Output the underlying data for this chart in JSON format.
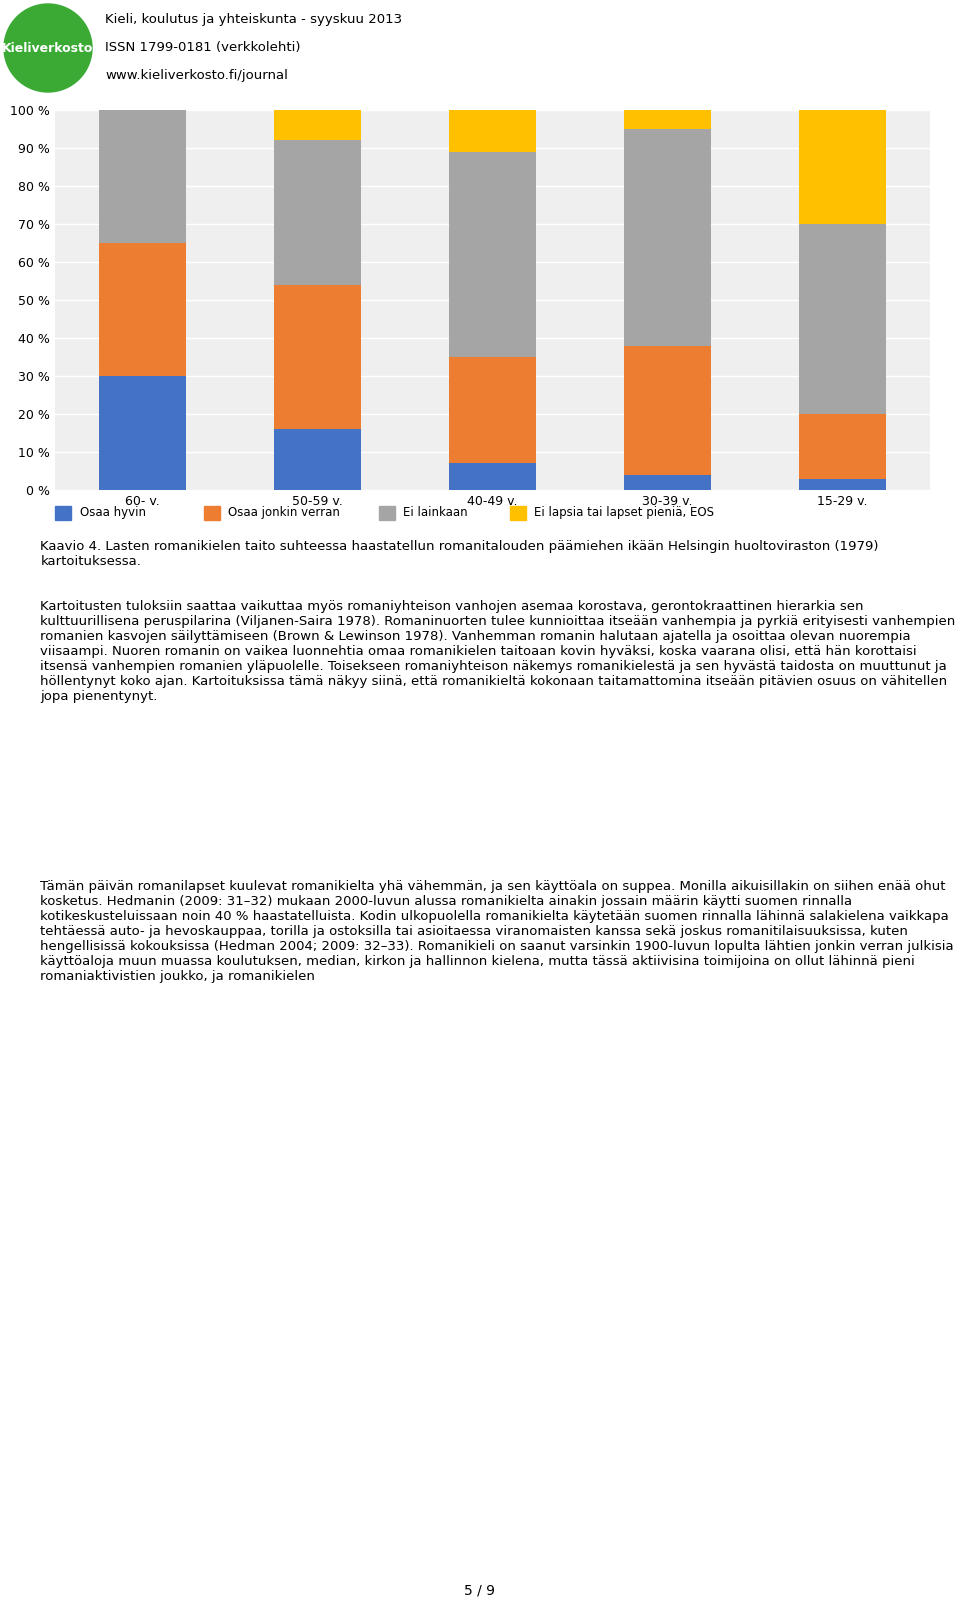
{
  "categories": [
    "60- v.",
    "50-59 v.",
    "40-49 v.",
    "30-39 v.",
    "15-29 v."
  ],
  "series": {
    "Osaa hyvin": [
      30,
      16,
      7,
      4,
      3
    ],
    "Osaa jonkin verran": [
      35,
      38,
      28,
      34,
      17
    ],
    "Ei lainkaan": [
      35,
      38,
      54,
      57,
      50
    ],
    "Ei lapsia tai lapset pieniä, EOS": [
      0,
      8,
      11,
      5,
      30
    ]
  },
  "colors": {
    "Osaa hyvin": "#4472C4",
    "Osaa jonkin verran": "#ED7D31",
    "Ei lainkaan": "#A5A5A5",
    "Ei lapsia tai lapset pieniä, EOS": "#FFC000"
  },
  "yticks": [
    0,
    10,
    20,
    30,
    40,
    50,
    60,
    70,
    80,
    90,
    100
  ],
  "ytick_labels": [
    "0 %",
    "10 %",
    "20 %",
    "30 %",
    "40 %",
    "50 %",
    "60 %",
    "70 %",
    "80 %",
    "90 %",
    "100 %"
  ],
  "background_color": "#FFFFFF",
  "chart_bg": "#EFEFEF",
  "header_title": "Kieli, koulutus ja yhteiskunta - syyskuu 2013",
  "header_line2": "ISSN 1799-0181 (verkkolehti)",
  "header_line3": "www.kieliverkosto.fi/journal",
  "caption": "Kaavio 4. Lasten romanikielen taito suhteessa haastatellun romanitalouden päämiehen ikään Helsingin huoltoviraston (1979) kartoituksessa.",
  "body_text1": "Kartoitusten tuloksiin saattaa vaikuttaa myös romaniyhteison vanhojen asemaa korostava, gerontokraattinen hierarkia sen kulttuurillisena peruspilarina (Viljanen-Saira 1978). Romaninuorten tulee kunnioittaa itseään vanhempia ja pyrkiä erityisesti vanhempien romanien kasvojen säilyttämiseen (Brown & Lewinson 1978). Vanhemman romanin halutaan ajatella ja osoittaa olevan nuorempia viisaampi. Nuoren romanin on vaikea luonnehtia omaa romanikielen taitoaan kovin hyväksi, koska vaarana olisi, että hän korottaisi itsensä vanhempien romanien yläpuolelle. Toisekseen romaniyhteison näkemys romanikielestä ja sen hyvästä taidosta on muuttunut ja höllentynyt koko ajan. Kartoituksissa tämä näkyy siinä, että romanikieltä kokonaan taitamattomina itseään pitävien osuus on vähitellen jopa pienentynyt.",
  "body_text2": "Tämän päivän romanilapset kuulevat romanikielta yhä vähemmän, ja sen käyttöala on suppea. Monilla aikuisillakin on siihen enää ohut kosketus. Hedmanin (2009: 31–32) mukaan 2000-luvun alussa romanikielta ainakin jossain määrin käytti suomen rinnalla kotikeskusteluissaan noin 40 % haastatelluista. Kodin ulkopuolella romanikielta käytetään suomen rinnalla lähinnä salakielena vaikkapa tehtäessä auto- ja hevoskauppaa, torilla ja ostoksilla tai asioitaessa viranomaisten kanssa sekä joskus romanitilaisuuksissa, kuten hengellisissä kokouksissa (Hedman 2004; 2009: 32–33). Romanikieli on saanut varsinkin 1900-luvun lopulta lähtien jonkin verran julkisia käyttöaloja muun muassa koulutuksen, median, kirkon ja hallinnon kielena, mutta tässä aktiivisina toimijoina on ollut lähinnä pieni romaniaktivistien joukko, ja romanikielen",
  "page_footer": "5 / 9",
  "logo_color": "#3aaa35",
  "logo_text": "Kieliverkosto",
  "legend_items": [
    "Osaa hyvin",
    "Osaa jonkin verran",
    "Ei lainkaan",
    "Ei lapsia tai lapset pieniä, EOS"
  ],
  "legend_colors": [
    "#4472C4",
    "#ED7D31",
    "#A5A5A5",
    "#FFC000"
  ]
}
